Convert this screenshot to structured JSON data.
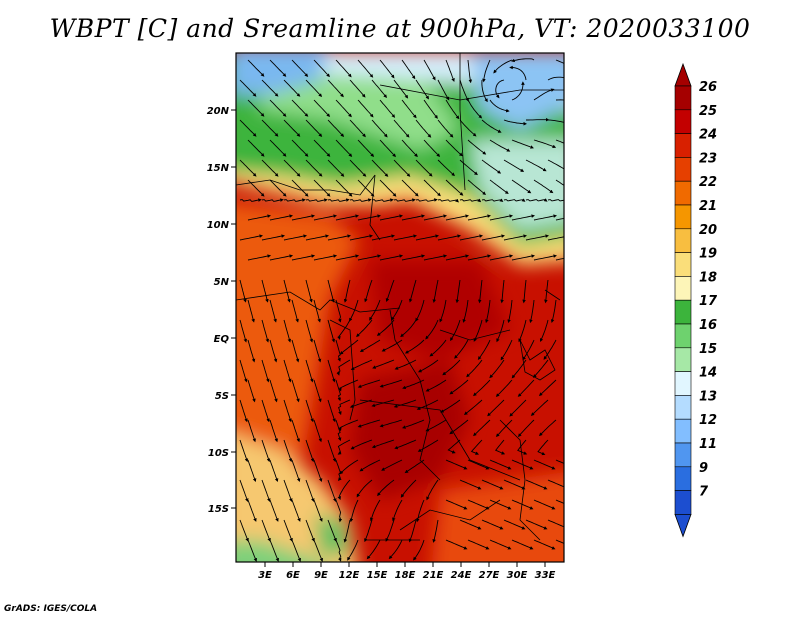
{
  "title": "WBPT [C] and Sreamline at 900hPa, VT: 2020033100",
  "credit": "GrADS: IGES/COLA",
  "lon_ticks": [
    "3E",
    "6E",
    "9E",
    "12E",
    "15E",
    "18E",
    "21E",
    "24E",
    "27E",
    "30E",
    "33E"
  ],
  "lat_ticks": [
    "20N",
    "15N",
    "10N",
    "5N",
    "EQ",
    "5S",
    "10S",
    "15S"
  ],
  "colorbar": {
    "levels": [
      "26",
      "25",
      "24",
      "23",
      "22",
      "21",
      "20",
      "19",
      "18",
      "17",
      "16",
      "15",
      "14",
      "13",
      "12",
      "11",
      "9",
      "7"
    ],
    "colors": [
      "#a50000",
      "#c30000",
      "#d82000",
      "#e64000",
      "#f06a00",
      "#f59600",
      "#f8be40",
      "#fade7a",
      "#fdf5b8",
      "#3cb43c",
      "#6ed26e",
      "#a6e8a6",
      "#e1f6ff",
      "#b4dcff",
      "#82beff",
      "#5096f0",
      "#2a6ee0",
      "#1c4ed0"
    ],
    "top_color": "#a50000",
    "bottom_color": "#1c4ed0"
  },
  "map_colors": {
    "cold_blue": "#7ab8f0",
    "pale_blue": "#d6eefc",
    "light_green": "#90de8a",
    "green": "#3cb43c",
    "yellow": "#fade7a",
    "orange": "#f07a10",
    "red_orange": "#e64000",
    "red": "#c81000",
    "dark_red": "#b00000"
  }
}
